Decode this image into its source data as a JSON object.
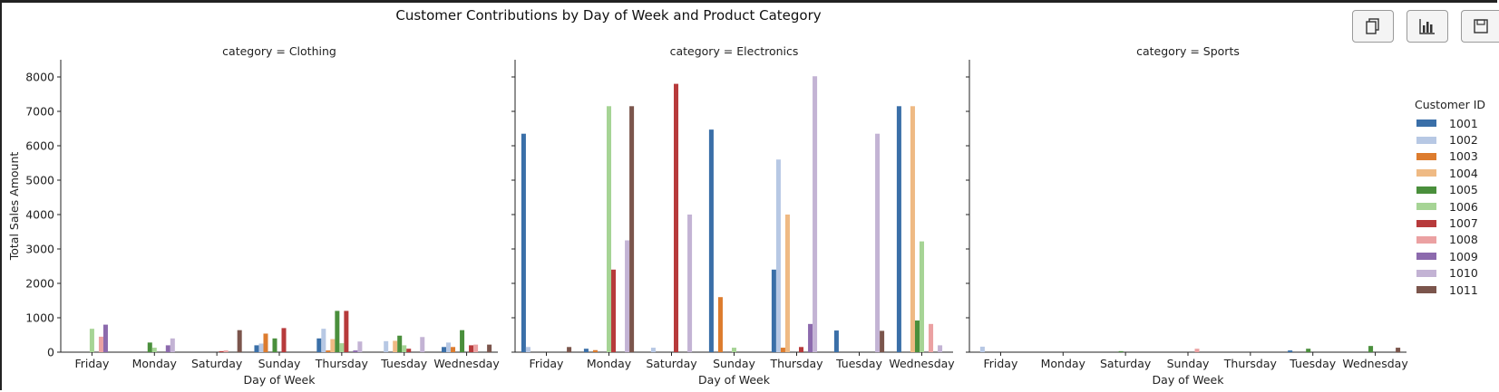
{
  "window": {
    "title": "Customer Contributions by Day of Week and Product Category"
  },
  "toolbar": {
    "buttons": [
      {
        "name": "copy-button",
        "icon": "copy-icon"
      },
      {
        "name": "chart-button",
        "icon": "bar-chart-icon"
      },
      {
        "name": "save-button",
        "icon": "save-icon"
      }
    ]
  },
  "legend": {
    "title": "Customer ID",
    "items": [
      "1001",
      "1002",
      "1003",
      "1004",
      "1005",
      "1006",
      "1007",
      "1008",
      "1009",
      "1010",
      "1011"
    ]
  },
  "colors": {
    "1001": "#3a6fa8",
    "1002": "#b7c8e4",
    "1003": "#dd7c2e",
    "1004": "#efba84",
    "1005": "#4a8f3c",
    "1006": "#a6d495",
    "1007": "#b73a3b",
    "1008": "#eba1a2",
    "1009": "#8c6aad",
    "1010": "#c3b3d4",
    "1011": "#7b554c"
  },
  "chart_data": {
    "type": "bar",
    "title": "Customer Contributions by Day of Week and Product Category",
    "xlabel": "Day of Week",
    "ylabel": "Total Sales Amount",
    "ylim": [
      0,
      8500
    ],
    "yticks": [
      0,
      1000,
      2000,
      3000,
      4000,
      5000,
      6000,
      7000,
      8000
    ],
    "categories": [
      "Friday",
      "Monday",
      "Saturday",
      "Sunday",
      "Thursday",
      "Tuesday",
      "Wednesday"
    ],
    "legend_title": "Customer ID",
    "legend_position": "right",
    "series_names": [
      "1001",
      "1002",
      "1003",
      "1004",
      "1005",
      "1006",
      "1007",
      "1008",
      "1009",
      "1010",
      "1011"
    ],
    "panels": [
      {
        "label": "category = Clothing",
        "values": [
          [
            0,
            0,
            0,
            0,
            0,
            680,
            0,
            450,
            800,
            0,
            0
          ],
          [
            0,
            0,
            0,
            0,
            280,
            130,
            0,
            0,
            200,
            400,
            0
          ],
          [
            0,
            0,
            0,
            0,
            0,
            0,
            30,
            50,
            0,
            0,
            640
          ],
          [
            200,
            250,
            540,
            0,
            400,
            0,
            700,
            0,
            0,
            0,
            0
          ],
          [
            400,
            680,
            50,
            380,
            1200,
            260,
            1200,
            0,
            50,
            310,
            0
          ],
          [
            0,
            320,
            0,
            330,
            480,
            200,
            100,
            0,
            0,
            440,
            0
          ],
          [
            150,
            280,
            150,
            0,
            640,
            0,
            200,
            220,
            0,
            0,
            220
          ]
        ]
      },
      {
        "label": "category = Electronics",
        "values": [
          [
            6350,
            150,
            0,
            0,
            0,
            0,
            0,
            0,
            0,
            0,
            150
          ],
          [
            100,
            0,
            60,
            0,
            0,
            7150,
            2400,
            0,
            0,
            3250,
            7150
          ],
          [
            0,
            130,
            0,
            0,
            0,
            0,
            7800,
            0,
            0,
            4000,
            0
          ],
          [
            6470,
            0,
            1600,
            0,
            0,
            130,
            0,
            0,
            0,
            0,
            0
          ],
          [
            2400,
            5600,
            130,
            4000,
            0,
            0,
            150,
            0,
            820,
            8020,
            0
          ],
          [
            630,
            0,
            0,
            0,
            0,
            0,
            0,
            0,
            0,
            6350,
            620
          ],
          [
            7150,
            0,
            0,
            7150,
            920,
            3220,
            0,
            820,
            0,
            200,
            0
          ]
        ]
      },
      {
        "label": "category = Sports",
        "values": [
          [
            0,
            160,
            0,
            0,
            0,
            0,
            0,
            0,
            0,
            0,
            0
          ],
          [
            0,
            0,
            0,
            0,
            0,
            0,
            0,
            0,
            0,
            0,
            0
          ],
          [
            0,
            0,
            0,
            0,
            30,
            0,
            0,
            0,
            0,
            0,
            0
          ],
          [
            0,
            0,
            0,
            0,
            0,
            0,
            0,
            100,
            0,
            0,
            0
          ],
          [
            0,
            0,
            0,
            0,
            0,
            0,
            0,
            0,
            0,
            0,
            0
          ],
          [
            50,
            0,
            0,
            0,
            100,
            0,
            0,
            0,
            0,
            0,
            0
          ],
          [
            0,
            0,
            0,
            0,
            180,
            0,
            0,
            0,
            0,
            0,
            130
          ]
        ]
      }
    ]
  }
}
